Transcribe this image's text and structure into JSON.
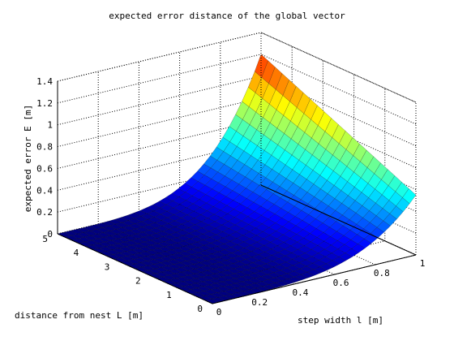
{
  "chart_data": {
    "type": "surface",
    "title": "expected error distance of the global vector",
    "xlabel": "step width l [m]",
    "ylabel": "distance from nest L [m]",
    "zlabel": "expected error E [m]",
    "xlim": [
      0,
      1
    ],
    "ylim": [
      0,
      5
    ],
    "zlim": [
      0,
      1.4
    ],
    "x_ticks": [
      "0",
      "0.2",
      "0.4",
      "0.6",
      "0.8",
      "1"
    ],
    "y_ticks": [
      "0",
      "1",
      "2",
      "3",
      "4",
      "5"
    ],
    "z_ticks": [
      "0",
      "0.2",
      "0.4",
      "0.6",
      "0.8",
      "1",
      "1.2",
      "1.4"
    ],
    "grid": true,
    "colormap": "jet",
    "surface": {
      "description_values": {
        "E_at_l0": 0,
        "E_at_l1_L0": 0.55,
        "E_at_l1_L5": 1.2
      }
    }
  }
}
